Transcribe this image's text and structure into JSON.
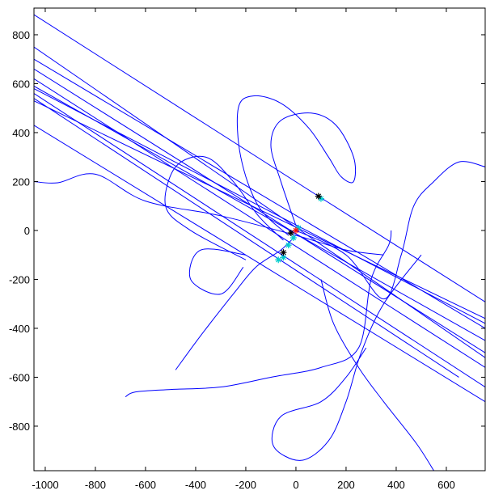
{
  "chart_data": {
    "type": "line",
    "xlim": [
      -1045,
      755
    ],
    "ylim": [
      -982,
      909
    ],
    "xticks": [
      -1000,
      -800,
      -600,
      -400,
      -200,
      0,
      200,
      400,
      600
    ],
    "yticks": [
      -800,
      -600,
      -400,
      -200,
      0,
      200,
      400,
      600,
      800
    ],
    "series": [
      {
        "color": "#0000ff",
        "x": [
          -1045,
          90,
          755
        ],
        "values": [
          882,
          140,
          -292
        ]
      },
      {
        "color": "#0000ff",
        "x": [
          -1045,
          755
        ],
        "values": [
          750,
          -520
        ]
      },
      {
        "color": "#0000ff",
        "x": [
          -1045,
          755
        ],
        "values": [
          700,
          -400
        ]
      },
      {
        "color": "#0000ff",
        "x": [
          -1045,
          755
        ],
        "values": [
          660,
          -500
        ]
      },
      {
        "color": "#0000ff",
        "x": [
          -1045,
          755
        ],
        "values": [
          620,
          -560
        ]
      },
      {
        "color": "#0000ff",
        "x": [
          -1045,
          755
        ],
        "values": [
          590,
          -450
        ]
      },
      {
        "color": "#0000ff",
        "x": [
          -1045,
          755
        ],
        "values": [
          580,
          -380
        ]
      },
      {
        "color": "#0000ff",
        "x": [
          -1045,
          755
        ],
        "values": [
          560,
          -640
        ]
      },
      {
        "color": "#0000ff",
        "x": [
          -1045,
          650
        ],
        "values": [
          540,
          -600
        ]
      },
      {
        "color": "#0000ff",
        "x": [
          -1045,
          755
        ],
        "values": [
          530,
          -360
        ]
      },
      {
        "color": "#0000ff",
        "x": [
          -1045,
          755
        ],
        "values": [
          430,
          -700
        ]
      },
      {
        "color": "#0000ff",
        "x": [
          -1045,
          -950,
          -800,
          -600,
          -300,
          0,
          200,
          350
        ],
        "values": [
          200,
          195,
          230,
          120,
          60,
          -20,
          -80,
          -100
        ]
      },
      {
        "color": "#0000ff",
        "x": [
          -30,
          -150,
          -220,
          -230,
          -170,
          -60,
          50,
          130,
          180,
          230,
          230,
          160,
          60,
          -60,
          -100,
          -60,
          0
        ],
        "values": [
          -20,
          100,
          300,
          500,
          550,
          520,
          420,
          300,
          220,
          200,
          300,
          430,
          480,
          450,
          350,
          200,
          20
        ]
      },
      {
        "color": "#0000ff",
        "x": [
          0,
          200,
          350,
          420,
          470,
          550,
          650,
          755
        ],
        "values": [
          0,
          -100,
          -280,
          -100,
          100,
          200,
          280,
          260
        ]
      },
      {
        "color": "#0000ff",
        "x": [
          -680,
          -640,
          -500,
          -300,
          -100,
          100,
          250,
          300,
          370,
          380
        ],
        "values": [
          -680,
          -660,
          -650,
          -640,
          -600,
          -560,
          -480,
          -200,
          -60,
          0
        ]
      },
      {
        "color": "#0000ff",
        "x": [
          -480,
          -380,
          -250,
          -160,
          -60,
          0
        ],
        "values": [
          -570,
          -430,
          -260,
          -150,
          -80,
          -20
        ]
      },
      {
        "color": "#0000ff",
        "x": [
          280,
          200,
          100,
          -60,
          -90,
          20,
          130,
          200,
          260,
          350,
          500
        ],
        "values": [
          -480,
          -600,
          -700,
          -760,
          -880,
          -940,
          -860,
          -700,
          -500,
          -300,
          -100
        ]
      },
      {
        "color": "#0000ff",
        "x": [
          -200,
          -420,
          -520,
          -480,
          -360,
          -250,
          -150,
          -50
        ],
        "values": [
          -120,
          0,
          100,
          260,
          300,
          200,
          60,
          -40
        ]
      },
      {
        "color": "#0000ff",
        "x": [
          100,
          150,
          250,
          350,
          480,
          550
        ],
        "values": [
          -200,
          -380,
          -560,
          -700,
          -870,
          -982
        ]
      },
      {
        "color": "#0000ff",
        "x": [
          -200,
          -380,
          -420,
          -300,
          -210
        ],
        "values": [
          -100,
          -80,
          -200,
          -260,
          -150
        ]
      },
      {
        "color": "#00cccc",
        "marker": "*",
        "x": [
          -70,
          -50,
          -30,
          -10,
          10,
          100
        ],
        "values": [
          -120,
          -110,
          -60,
          -30,
          10,
          130
        ]
      },
      {
        "color": "#000000",
        "marker": "*",
        "x": [
          90,
          -20,
          -50
        ],
        "values": [
          140,
          -10,
          -90
        ]
      },
      {
        "color": "#ff0000",
        "marker": "*",
        "x": [
          0
        ],
        "values": [
          0
        ]
      }
    ]
  }
}
